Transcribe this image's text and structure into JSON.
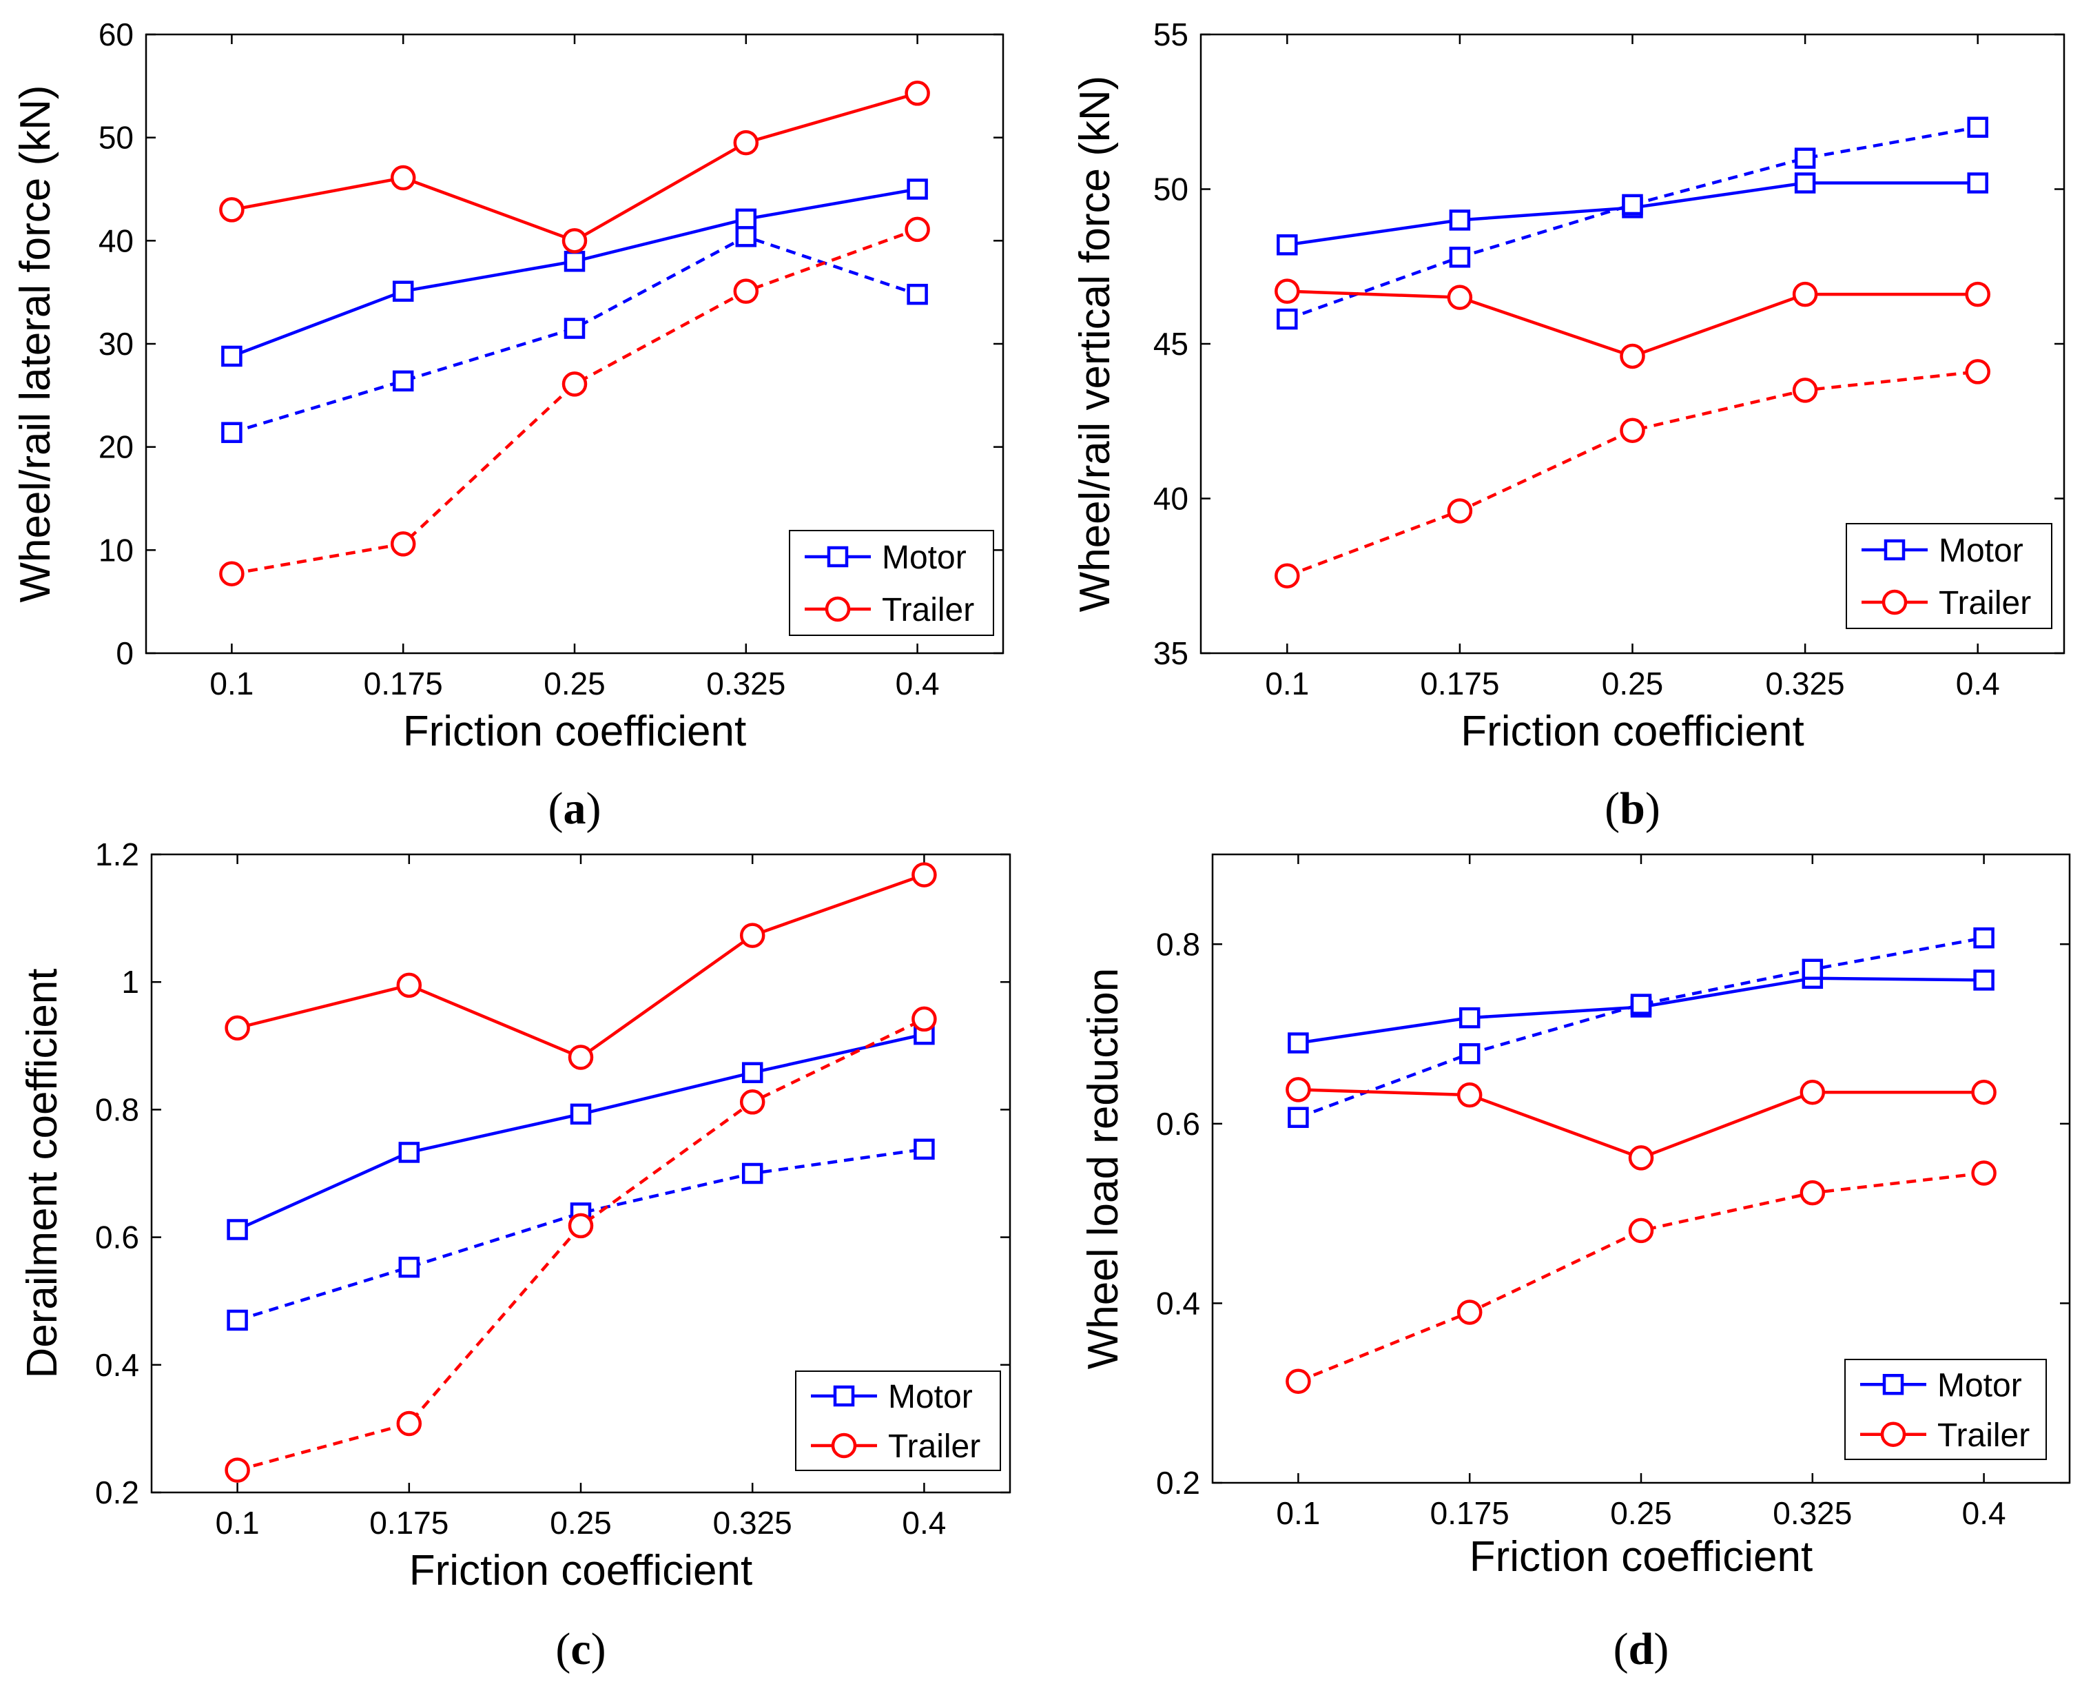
{
  "figure": {
    "colors": {
      "motor": "#0000ff",
      "trailer": "#ff0000",
      "axis": "#000000"
    }
  },
  "chart_data": [
    {
      "type": "line",
      "caption_letter": "a",
      "xlabel": "Friction coefficient",
      "ylabel": "Wheel/rail lateral force (kN)",
      "categories": [
        "0.1",
        "0.175",
        "0.25",
        "0.325",
        "0.4"
      ],
      "ylim": [
        0,
        60
      ],
      "yticks": [
        0,
        10,
        20,
        30,
        40,
        50,
        60
      ],
      "ytick_labels": [
        "0",
        "10",
        "20",
        "30",
        "40",
        "50",
        "60"
      ],
      "legend": {
        "position": "bottom-right",
        "entries": [
          "Motor",
          "Trailer"
        ]
      },
      "series": [
        {
          "name": "Motor",
          "group": "motor",
          "style": "solid",
          "marker": "square",
          "values": [
            28.8,
            35.1,
            38.0,
            42.1,
            45.0
          ]
        },
        {
          "name": "Motor",
          "group": "motor",
          "style": "dashed",
          "marker": "square",
          "values": [
            21.4,
            26.4,
            31.5,
            40.4,
            34.8
          ]
        },
        {
          "name": "Trailer",
          "group": "trailer",
          "style": "solid",
          "marker": "circle",
          "values": [
            43.0,
            46.1,
            40.0,
            49.5,
            54.3
          ]
        },
        {
          "name": "Trailer",
          "group": "trailer",
          "style": "dashed",
          "marker": "circle",
          "values": [
            7.7,
            10.6,
            26.1,
            35.1,
            41.1
          ]
        }
      ]
    },
    {
      "type": "line",
      "caption_letter": "b",
      "xlabel": "Friction coefficient",
      "ylabel": "Wheel/rail vertical force (kN)",
      "categories": [
        "0.1",
        "0.175",
        "0.25",
        "0.325",
        "0.4"
      ],
      "ylim": [
        35,
        55
      ],
      "yticks": [
        35,
        40,
        45,
        50,
        55
      ],
      "ytick_labels": [
        "35",
        "40",
        "45",
        "50",
        "55"
      ],
      "legend": {
        "position": "bottom-right",
        "entries": [
          "Motor",
          "Trailer"
        ]
      },
      "series": [
        {
          "name": "Motor",
          "group": "motor",
          "style": "solid",
          "marker": "square",
          "values": [
            48.2,
            49.0,
            49.4,
            50.2,
            50.2
          ]
        },
        {
          "name": "Motor",
          "group": "motor",
          "style": "dashed",
          "marker": "square",
          "values": [
            45.8,
            47.8,
            49.5,
            51.0,
            52.0
          ]
        },
        {
          "name": "Trailer",
          "group": "trailer",
          "style": "solid",
          "marker": "circle",
          "values": [
            46.7,
            46.5,
            44.6,
            46.6,
            46.6
          ]
        },
        {
          "name": "Trailer",
          "group": "trailer",
          "style": "dashed",
          "marker": "circle",
          "values": [
            37.5,
            39.6,
            42.2,
            43.5,
            44.1
          ]
        }
      ]
    },
    {
      "type": "line",
      "caption_letter": "c",
      "xlabel": "Friction coefficient",
      "ylabel": "Derailment coefficient",
      "categories": [
        "0.1",
        "0.175",
        "0.25",
        "0.325",
        "0.4"
      ],
      "ylim": [
        0.2,
        1.2
      ],
      "yticks": [
        0.2,
        0.4,
        0.6,
        0.8,
        1.0,
        1.2
      ],
      "ytick_labels": [
        "0.2",
        "0.4",
        "0.6",
        "0.8",
        "1",
        "1.2"
      ],
      "legend": {
        "position": "bottom-right",
        "entries": [
          "Motor",
          "Trailer"
        ]
      },
      "series": [
        {
          "name": "Motor",
          "group": "motor",
          "style": "solid",
          "marker": "square",
          "values": [
            0.612,
            0.733,
            0.793,
            0.858,
            0.918
          ]
        },
        {
          "name": "Motor",
          "group": "motor",
          "style": "dashed",
          "marker": "square",
          "values": [
            0.47,
            0.553,
            0.638,
            0.7,
            0.738
          ]
        },
        {
          "name": "Trailer",
          "group": "trailer",
          "style": "solid",
          "marker": "circle",
          "values": [
            0.928,
            0.995,
            0.882,
            1.073,
            1.168
          ]
        },
        {
          "name": "Trailer",
          "group": "trailer",
          "style": "dashed",
          "marker": "circle",
          "values": [
            0.235,
            0.308,
            0.618,
            0.812,
            0.942
          ]
        }
      ]
    },
    {
      "type": "line",
      "caption_letter": "d",
      "xlabel": "Friction coefficient",
      "ylabel": "Wheel load reduction",
      "categories": [
        "0.1",
        "0.175",
        "0.25",
        "0.325",
        "0.4"
      ],
      "ylim": [
        0.2,
        0.9
      ],
      "yticks": [
        0.2,
        0.4,
        0.6,
        0.8
      ],
      "ytick_labels": [
        "0.2",
        "0.4",
        "0.6",
        "0.8"
      ],
      "legend": {
        "position": "bottom-right",
        "entries": [
          "Motor",
          "Trailer"
        ]
      },
      "series": [
        {
          "name": "Motor",
          "group": "motor",
          "style": "solid",
          "marker": "square",
          "values": [
            0.69,
            0.718,
            0.73,
            0.762,
            0.76
          ]
        },
        {
          "name": "Motor",
          "group": "motor",
          "style": "dashed",
          "marker": "square",
          "values": [
            0.607,
            0.678,
            0.733,
            0.772,
            0.807
          ]
        },
        {
          "name": "Trailer",
          "group": "trailer",
          "style": "solid",
          "marker": "circle",
          "values": [
            0.638,
            0.632,
            0.562,
            0.635,
            0.635
          ]
        },
        {
          "name": "Trailer",
          "group": "trailer",
          "style": "dashed",
          "marker": "circle",
          "values": [
            0.313,
            0.39,
            0.481,
            0.523,
            0.545
          ]
        }
      ]
    }
  ]
}
